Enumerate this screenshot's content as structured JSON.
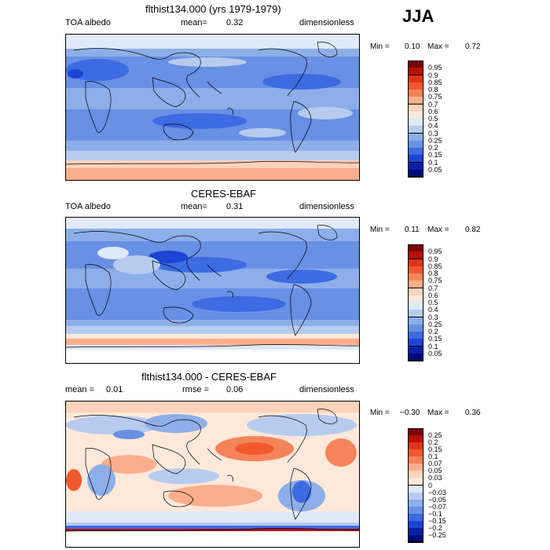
{
  "season": "JJA",
  "chart_data": [
    {
      "type": "heatmap",
      "title": "flthist134.000 (yrs 1979-1979)",
      "variable_label": "TOA albedo",
      "mean_label": "mean=",
      "mean_value": "0.32",
      "units": "dimensionless",
      "min_label": "Min =",
      "min_value": "0.10",
      "max_label": "Max =",
      "max_value": "0.72",
      "colorbar_levels": [
        "0.95",
        "0.9",
        "0.85",
        "0.8",
        "0.75",
        "0.7",
        "0.6",
        "0.5",
        "0.4",
        "0.3",
        "0.25",
        "0.2",
        "0.15",
        "0.1",
        "0.05"
      ],
      "colorbar_colors": [
        "#7a0000",
        "#b81000",
        "#e0341a",
        "#f2582e",
        "#f6845a",
        "#fbae8c",
        "#fcd2b8",
        "#fde8da",
        "#dfe9f8",
        "#b7cbef",
        "#8daee8",
        "#6890e4",
        "#3d6be2",
        "#1c45d6",
        "#0a1fa8",
        "#000a78"
      ]
    },
    {
      "type": "heatmap",
      "title": "CERES-EBAF",
      "variable_label": "TOA albedo",
      "mean_label": "mean=",
      "mean_value": "0.31",
      "units": "dimensionless",
      "min_label": "Min =",
      "min_value": "0.11",
      "max_label": "Max =",
      "max_value": "0.82",
      "colorbar_levels": [
        "0.95",
        "0.9",
        "0.85",
        "0.8",
        "0.75",
        "0.7",
        "0.6",
        "0.5",
        "0.4",
        "0.3",
        "0.25",
        "0.2",
        "0.15",
        "0.1",
        "0.05"
      ],
      "colorbar_colors": [
        "#7a0000",
        "#b81000",
        "#e0341a",
        "#f2582e",
        "#f6845a",
        "#fbae8c",
        "#fcd2b8",
        "#fde8da",
        "#dfe9f8",
        "#b7cbef",
        "#8daee8",
        "#6890e4",
        "#3d6be2",
        "#1c45d6",
        "#0a1fa8",
        "#000a78"
      ]
    },
    {
      "type": "heatmap",
      "title": "flthist134.000 - CERES-EBAF",
      "mean_label": "mean =",
      "mean_value": "0.01",
      "rmse_label": "rmse =",
      "rmse_value": "0.06",
      "units": "dimensionless",
      "min_label": "Min =",
      "min_value": "−0.30",
      "max_label": "Max =",
      "max_value": "0.36",
      "colorbar_levels": [
        "0.25",
        "0.2",
        "0.15",
        "0.1",
        "0.07",
        "0.05",
        "0.03",
        "0",
        "−0.03",
        "−0.05",
        "−0.07",
        "−0.1",
        "−0.15",
        "−0.2",
        "−0.25"
      ],
      "colorbar_colors": [
        "#7a0000",
        "#b81000",
        "#e0341a",
        "#f2582e",
        "#f6845a",
        "#fbae8c",
        "#fcd2b8",
        "#fde8da",
        "#dfe9f8",
        "#b7cbef",
        "#8daee8",
        "#6890e4",
        "#3d6be2",
        "#1c45d6",
        "#0a1fa8",
        "#000a78"
      ]
    }
  ]
}
